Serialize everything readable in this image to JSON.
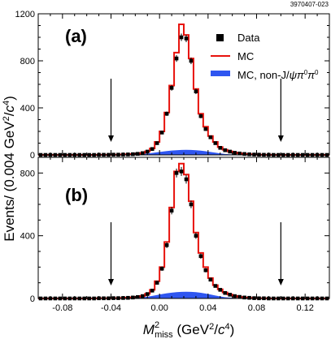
{
  "figure_id": "3970407-023",
  "ylabel": {
    "prefix": "Events/ (0.004 GeV",
    "sup1": "2",
    "slash": "/",
    "c": "c",
    "sup2": "4",
    "suffix": ")"
  },
  "xlabel": {
    "M": "M",
    "sup": "2",
    "sub": "miss",
    "unit_prefix": " (GeV",
    "unit_sup1": "2",
    "unit_slash": "/",
    "unit_c": "c",
    "unit_sup2": "4",
    "unit_suffix": ")"
  },
  "legend": {
    "data": "Data",
    "mc": "MC",
    "bg_prefix": "MC, non-J/",
    "bg_psi": "ψ",
    "bg_pi1": "π",
    "bg_pi1_sup": "0",
    "bg_pi2": "π",
    "bg_pi2_sup": "0"
  },
  "colors": {
    "mc_line": "#e8120c",
    "background_fill": "#2f56f0",
    "data_marker": "#000000"
  },
  "chart_data": [
    {
      "type": "line",
      "panel_label": "(a)",
      "x": [
        -0.098,
        -0.094,
        -0.09,
        -0.086,
        -0.082,
        -0.078,
        -0.074,
        -0.07,
        -0.066,
        -0.062,
        -0.058,
        -0.054,
        -0.05,
        -0.046,
        -0.042,
        -0.038,
        -0.034,
        -0.03,
        -0.026,
        -0.022,
        -0.018,
        -0.014,
        -0.01,
        -0.006,
        -0.002,
        0.002,
        0.006,
        0.01,
        0.014,
        0.018,
        0.022,
        0.026,
        0.03,
        0.034,
        0.038,
        0.042,
        0.046,
        0.05,
        0.054,
        0.058,
        0.062,
        0.066,
        0.07,
        0.074,
        0.078,
        0.082,
        0.086,
        0.09,
        0.094,
        0.098,
        0.102,
        0.106,
        0.11,
        0.114,
        0.118,
        0.122,
        0.126,
        0.13,
        0.134,
        0.138
      ],
      "series": [
        {
          "name": "Data",
          "values": [
            0,
            0,
            0,
            0,
            0,
            0,
            0,
            0,
            0,
            0,
            0,
            0,
            1,
            1,
            1,
            2,
            2,
            3,
            4,
            6,
            9,
            15,
            28,
            50,
            100,
            190,
            350,
            570,
            820,
            1000,
            990,
            800,
            540,
            330,
            220,
            150,
            100,
            60,
            40,
            28,
            18,
            12,
            8,
            5,
            3,
            2,
            1,
            1,
            0,
            0,
            0,
            0,
            0,
            0,
            0,
            0,
            0,
            0,
            0,
            0
          ]
        },
        {
          "name": "MC",
          "values": [
            0,
            0,
            0,
            0,
            0,
            0,
            0,
            0,
            0,
            0,
            0,
            0,
            1,
            1,
            1,
            2,
            2,
            3,
            5,
            7,
            10,
            16,
            30,
            55,
            110,
            200,
            360,
            590,
            870,
            1110,
            1020,
            820,
            560,
            350,
            240,
            160,
            110,
            66,
            44,
            30,
            20,
            13,
            8,
            5,
            3,
            2,
            1,
            1,
            0,
            0,
            0,
            0,
            0,
            0,
            0,
            0,
            0,
            0,
            0,
            0
          ]
        },
        {
          "name": "MC, non-J/ψπ0π0",
          "values": [
            0,
            0,
            0,
            0,
            0,
            0,
            0,
            0,
            0,
            0,
            0,
            0,
            0,
            0,
            0,
            0,
            0,
            0,
            1,
            2,
            4,
            7,
            11,
            16,
            22,
            28,
            33,
            37,
            40,
            42,
            43,
            42,
            40,
            36,
            31,
            25,
            19,
            13,
            8,
            5,
            3,
            1,
            0,
            0,
            0,
            0,
            0,
            0,
            0,
            0,
            0,
            0,
            0,
            0,
            0,
            0,
            0,
            0,
            0,
            0
          ]
        }
      ],
      "ylim": [
        0,
        1200
      ],
      "yticks": [
        0,
        400,
        800,
        1200
      ],
      "xlim": [
        -0.1,
        0.14
      ],
      "arrows_x": [
        -0.04,
        0.1
      ]
    },
    {
      "type": "line",
      "panel_label": "(b)",
      "x": [
        -0.098,
        -0.094,
        -0.09,
        -0.086,
        -0.082,
        -0.078,
        -0.074,
        -0.07,
        -0.066,
        -0.062,
        -0.058,
        -0.054,
        -0.05,
        -0.046,
        -0.042,
        -0.038,
        -0.034,
        -0.03,
        -0.026,
        -0.022,
        -0.018,
        -0.014,
        -0.01,
        -0.006,
        -0.002,
        0.002,
        0.006,
        0.01,
        0.014,
        0.018,
        0.022,
        0.026,
        0.03,
        0.034,
        0.038,
        0.042,
        0.046,
        0.05,
        0.054,
        0.058,
        0.062,
        0.066,
        0.07,
        0.074,
        0.078,
        0.082,
        0.086,
        0.09,
        0.094,
        0.098,
        0.102,
        0.106,
        0.11,
        0.114,
        0.118,
        0.122,
        0.126,
        0.13,
        0.134,
        0.138
      ],
      "series": [
        {
          "name": "Data",
          "values": [
            0,
            0,
            0,
            0,
            0,
            0,
            0,
            0,
            0,
            0,
            0,
            0,
            1,
            1,
            1,
            2,
            2,
            3,
            4,
            6,
            9,
            15,
            28,
            50,
            100,
            190,
            340,
            560,
            800,
            810,
            760,
            600,
            400,
            270,
            180,
            120,
            80,
            55,
            35,
            24,
            15,
            10,
            6,
            4,
            2,
            1,
            1,
            0,
            0,
            0,
            0,
            0,
            0,
            0,
            0,
            0,
            0,
            0,
            0,
            0
          ]
        },
        {
          "name": "MC",
          "values": [
            0,
            0,
            0,
            0,
            0,
            0,
            0,
            0,
            0,
            0,
            0,
            0,
            1,
            1,
            1,
            2,
            2,
            3,
            5,
            7,
            10,
            16,
            30,
            55,
            110,
            200,
            360,
            580,
            810,
            860,
            790,
            620,
            420,
            290,
            200,
            130,
            85,
            58,
            38,
            25,
            16,
            10,
            6,
            4,
            2,
            1,
            1,
            0,
            0,
            0,
            0,
            0,
            0,
            0,
            0,
            0,
            0,
            0,
            0,
            0
          ]
        },
        {
          "name": "MC, non-J/ψπ0π0",
          "values": [
            0,
            0,
            0,
            0,
            0,
            0,
            0,
            0,
            0,
            0,
            0,
            0,
            0,
            0,
            0,
            0,
            0,
            0,
            1,
            2,
            4,
            7,
            11,
            16,
            22,
            28,
            33,
            37,
            40,
            42,
            43,
            42,
            40,
            36,
            31,
            25,
            19,
            13,
            8,
            5,
            3,
            1,
            0,
            0,
            0,
            0,
            0,
            0,
            0,
            0,
            0,
            0,
            0,
            0,
            0,
            0,
            0,
            0,
            0,
            0
          ]
        }
      ],
      "ylim": [
        0,
        900
      ],
      "yticks": [
        0,
        400,
        800
      ],
      "xlim": [
        -0.1,
        0.14
      ],
      "xticks": [
        -0.08,
        -0.04,
        0.0,
        0.04,
        0.08,
        0.12
      ],
      "xtick_labels": [
        "-0.08",
        "-0.04",
        "0.00",
        "0.04",
        "0.08",
        "0.12"
      ],
      "arrows_x": [
        -0.04,
        0.1
      ]
    }
  ]
}
